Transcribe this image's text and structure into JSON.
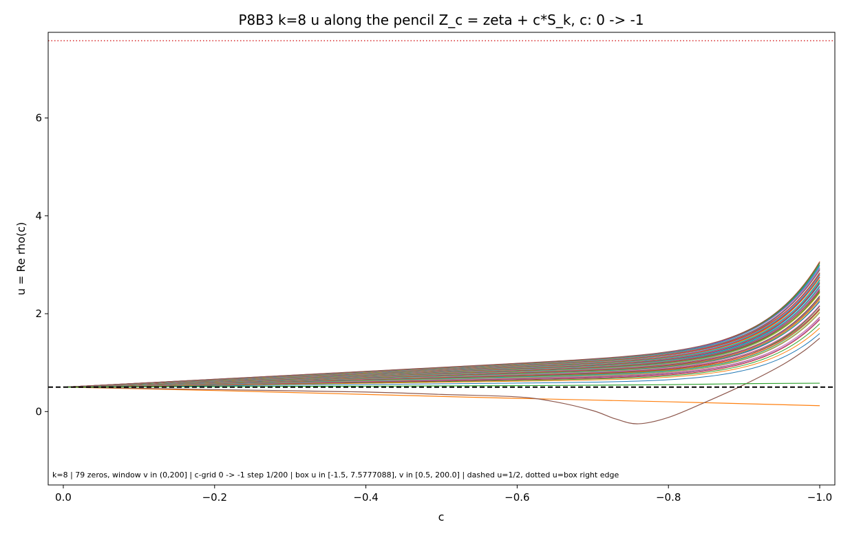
{
  "chart_data": {
    "type": "line",
    "title": "P8B3  k=8   u along the pencil Z_c = zeta + c*S_k,  c: 0 -> -1",
    "xlabel": "c",
    "ylabel": "u = Re rho(c)",
    "xlim": [
      0.02,
      -1.02
    ],
    "ylim": [
      -1.5,
      7.75
    ],
    "x_ticks": [
      0.0,
      -0.2,
      -0.4,
      -0.6,
      -0.8,
      -1.0
    ],
    "x_tick_labels": [
      "0.0",
      "−0.2",
      "−0.4",
      "−0.6",
      "−0.8",
      "−1.0"
    ],
    "y_ticks": [
      0,
      2,
      4,
      6
    ],
    "y_tick_labels": [
      "0",
      "2",
      "4",
      "6"
    ],
    "grid": false,
    "annotation": "k=8 | 79 zeros, window v in (0,200] | c-grid 0 -> -1 step 1/200 | box u in [-1.5, 7.5777088], v in [0.5, 200.0] | dashed u=1/2, dotted u=box right edge",
    "reference_lines": [
      {
        "name": "dashed u=1/2",
        "y": 0.5,
        "style": "dashed",
        "color": "#000000"
      },
      {
        "name": "dotted u=box right edge",
        "y": 7.5777088,
        "style": "dotted",
        "color": "#d62728"
      }
    ],
    "x_domain": [
      0.0,
      -1.0
    ],
    "trajectory_family": {
      "count": 79,
      "start_value": 0.5,
      "end_values_range": [
        0.55,
        3.14
      ]
    },
    "special_series": [
      {
        "x": [
          0.0,
          -0.2,
          -0.4,
          -0.6,
          -0.8,
          -1.0
        ],
        "y": [
          0.5,
          0.43,
          0.35,
          0.27,
          0.2,
          0.12
        ],
        "color": "#ff7f0e"
      },
      {
        "x": [
          0.0,
          -0.2,
          -0.4,
          -0.5,
          -0.6,
          -0.65,
          -0.7,
          -0.73,
          -0.76,
          -0.8,
          -0.85,
          -0.9,
          -0.95,
          -0.98,
          -1.0
        ],
        "y": [
          0.5,
          0.45,
          0.4,
          0.35,
          0.3,
          0.2,
          0.02,
          -0.15,
          -0.25,
          -0.12,
          0.2,
          0.55,
          0.95,
          1.25,
          1.5
        ],
        "color": "#8c564b"
      },
      {
        "x": [
          0.0,
          -0.2,
          -0.4,
          -0.6,
          -0.8,
          -0.9,
          -1.0
        ],
        "y": [
          0.5,
          0.51,
          0.52,
          0.53,
          0.55,
          0.57,
          0.58
        ],
        "color": "#2ca02c"
      }
    ],
    "palette": [
      "#1f77b4",
      "#ff7f0e",
      "#2ca02c",
      "#d62728",
      "#9467bd",
      "#8c564b",
      "#e377c2",
      "#7f7f7f",
      "#bcbd22",
      "#17becf"
    ]
  }
}
